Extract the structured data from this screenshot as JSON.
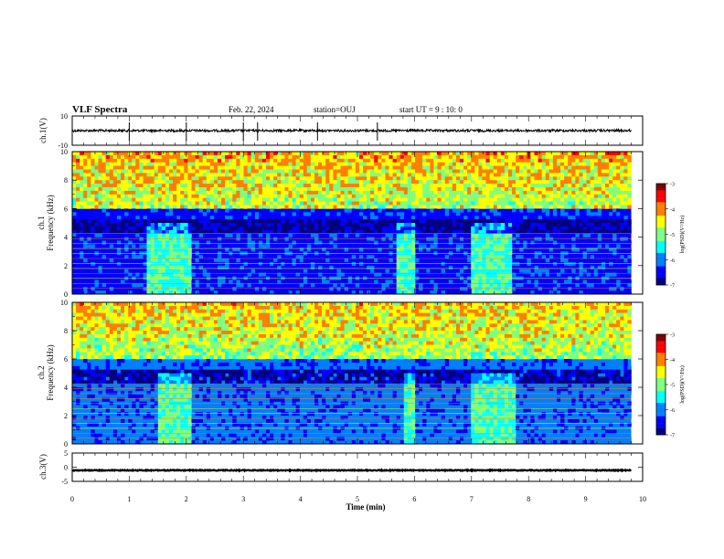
{
  "header": {
    "title": "VLF Spectra",
    "date": "Feb. 22, 2024",
    "station": "station=OUJ",
    "start_ut": "start  UT =   9 : 10: 0"
  },
  "chart_data": [
    {
      "type": "line",
      "panel": "ch.1 waveform",
      "ylabel": "ch.1(V)",
      "ylim": [
        -10,
        10
      ],
      "yticks": [
        "10",
        "-10"
      ],
      "x_range_min": [
        0,
        9.8
      ],
      "baseline_value": 0,
      "noise_amplitude": 0.8,
      "spikes_min": [
        1.0,
        2.0,
        3.0,
        3.25,
        4.3,
        5.35
      ]
    },
    {
      "type": "heatmap",
      "panel": "ch.1 spectrogram",
      "ylabel": "ch.1\nFrequency (kHz)",
      "ylim": [
        0,
        10
      ],
      "yticks": [
        "0",
        "2",
        "4",
        "6",
        "8",
        "10"
      ],
      "x_range_min": [
        0,
        9.8
      ],
      "colorbar_label": "log(PSD)(V²/Hz)",
      "colorbar_ticks": [
        "-3",
        "-4",
        "-5",
        "-6",
        "-7"
      ],
      "colorbar_range": [
        -7,
        -3
      ],
      "background_level": -6.3,
      "hiss_level": -4.8,
      "hiss_band_khz": [
        6,
        10
      ],
      "dark_gap_khz": [
        4.2,
        5.2
      ],
      "bright_patch_minutes": [
        [
          1.3,
          2.1
        ],
        [
          5.7,
          6.0
        ],
        [
          7.0,
          7.7
        ]
      ]
    },
    {
      "type": "heatmap",
      "panel": "ch.2 spectrogram",
      "ylabel": "ch.2\nFrequency (kHz)",
      "ylim": [
        0,
        10
      ],
      "yticks": [
        "0",
        "2",
        "4",
        "6",
        "8",
        "10"
      ],
      "x_range_min": [
        0,
        9.8
      ],
      "colorbar_label": "log(PSD)(V²/Hz)",
      "colorbar_ticks": [
        "-3",
        "-4",
        "-5",
        "-6",
        "-7"
      ],
      "colorbar_range": [
        -7,
        -3
      ],
      "background_level": -6.2,
      "hiss_level": -4.9,
      "hiss_band_khz": [
        6,
        10
      ],
      "dark_gap_khz": [
        4.2,
        5.2
      ],
      "bright_patch_minutes": [
        [
          1.5,
          2.1
        ],
        [
          5.8,
          6.0
        ],
        [
          7.0,
          7.75
        ]
      ]
    },
    {
      "type": "line",
      "panel": "ch.3 waveform",
      "ylabel": "ch.3(V)",
      "ylim": [
        -5,
        5
      ],
      "yticks": [
        "5",
        "0",
        "-5"
      ],
      "x_range_min": [
        0,
        9.8
      ],
      "baseline_value": -1.1,
      "noise_amplitude": 0.15
    }
  ],
  "x_axis": {
    "label": "Time  (min)",
    "ticks": [
      "0",
      "1",
      "2",
      "3",
      "4",
      "5",
      "6",
      "7",
      "8",
      "9",
      "10"
    ],
    "range": [
      0,
      10
    ]
  },
  "colormap": [
    "#00007f",
    "#0000ff",
    "#007fff",
    "#00ffff",
    "#7fff7f",
    "#ffff00",
    "#ff7f00",
    "#ff0000",
    "#7f0000"
  ]
}
